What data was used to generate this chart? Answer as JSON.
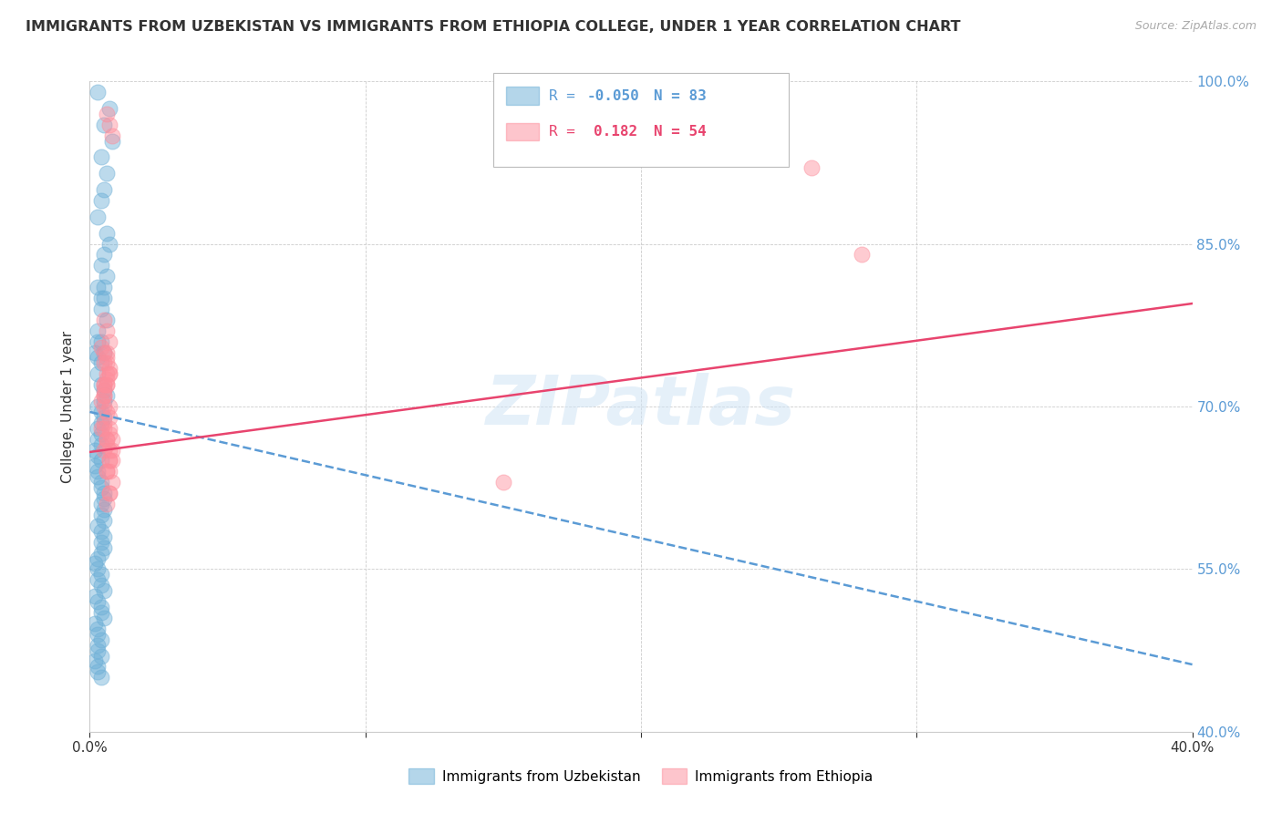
{
  "title": "IMMIGRANTS FROM UZBEKISTAN VS IMMIGRANTS FROM ETHIOPIA COLLEGE, UNDER 1 YEAR CORRELATION CHART",
  "source": "Source: ZipAtlas.com",
  "ylabel": "College, Under 1 year",
  "xlim": [
    0.0,
    0.4
  ],
  "ylim": [
    0.4,
    1.0
  ],
  "xticks": [
    0.0,
    0.1,
    0.2,
    0.3,
    0.4
  ],
  "xtick_labels_show": [
    "0.0%",
    "",
    "",
    "",
    "40.0%"
  ],
  "yticks": [
    0.4,
    0.55,
    0.7,
    0.85,
    1.0
  ],
  "ytick_labels": [
    "40.0%",
    "55.0%",
    "70.0%",
    "85.0%",
    "100.0%"
  ],
  "series1_label": "Immigrants from Uzbekistan",
  "series2_label": "Immigrants from Ethiopia",
  "series1_color": "#6baed6",
  "series2_color": "#fd8d9b",
  "legend_R1_prefix": "R = ",
  "legend_R1_val": "-0.050",
  "legend_N1_prefix": "N = ",
  "legend_N1_val": "83",
  "legend_R2_prefix": "R =  ",
  "legend_R2_val": "0.182",
  "legend_N2_prefix": "N = ",
  "legend_N2_val": "54",
  "watermark": "ZIPatlas",
  "trend1_x0": 0.0,
  "trend1_x1": 0.4,
  "trend1_y0": 0.695,
  "trend1_y1": 0.462,
  "trend2_x0": 0.0,
  "trend2_x1": 0.4,
  "trend2_y0": 0.658,
  "trend2_y1": 0.795,
  "scatter1_x": [
    0.003,
    0.007,
    0.005,
    0.008,
    0.004,
    0.006,
    0.005,
    0.004,
    0.003,
    0.006,
    0.007,
    0.005,
    0.004,
    0.006,
    0.005,
    0.004,
    0.003,
    0.005,
    0.004,
    0.006,
    0.003,
    0.004,
    0.005,
    0.003,
    0.002,
    0.003,
    0.004,
    0.003,
    0.004,
    0.005,
    0.006,
    0.005,
    0.003,
    0.004,
    0.005,
    0.004,
    0.003,
    0.004,
    0.003,
    0.004,
    0.002,
    0.003,
    0.004,
    0.002,
    0.003,
    0.003,
    0.004,
    0.004,
    0.005,
    0.005,
    0.004,
    0.005,
    0.004,
    0.005,
    0.003,
    0.004,
    0.005,
    0.004,
    0.005,
    0.004,
    0.003,
    0.002,
    0.003,
    0.004,
    0.003,
    0.004,
    0.005,
    0.002,
    0.003,
    0.004,
    0.004,
    0.005,
    0.002,
    0.003,
    0.003,
    0.004,
    0.003,
    0.003,
    0.004,
    0.002,
    0.003,
    0.003,
    0.004
  ],
  "scatter1_y": [
    0.99,
    0.975,
    0.96,
    0.945,
    0.93,
    0.915,
    0.9,
    0.89,
    0.875,
    0.86,
    0.85,
    0.84,
    0.83,
    0.82,
    0.81,
    0.8,
    0.81,
    0.8,
    0.79,
    0.78,
    0.77,
    0.76,
    0.75,
    0.76,
    0.75,
    0.745,
    0.74,
    0.73,
    0.72,
    0.715,
    0.71,
    0.705,
    0.7,
    0.695,
    0.69,
    0.685,
    0.68,
    0.675,
    0.67,
    0.665,
    0.66,
    0.655,
    0.65,
    0.645,
    0.64,
    0.635,
    0.63,
    0.625,
    0.62,
    0.615,
    0.61,
    0.605,
    0.6,
    0.595,
    0.59,
    0.585,
    0.58,
    0.575,
    0.57,
    0.565,
    0.56,
    0.555,
    0.55,
    0.545,
    0.54,
    0.535,
    0.53,
    0.525,
    0.52,
    0.515,
    0.51,
    0.505,
    0.5,
    0.495,
    0.49,
    0.485,
    0.48,
    0.475,
    0.47,
    0.465,
    0.46,
    0.455,
    0.45
  ],
  "scatter2_x": [
    0.006,
    0.007,
    0.008,
    0.005,
    0.006,
    0.007,
    0.005,
    0.006,
    0.007,
    0.005,
    0.004,
    0.006,
    0.007,
    0.006,
    0.005,
    0.004,
    0.006,
    0.005,
    0.007,
    0.006,
    0.005,
    0.007,
    0.004,
    0.006,
    0.005,
    0.006,
    0.005,
    0.007,
    0.006,
    0.005,
    0.007,
    0.006,
    0.008,
    0.007,
    0.006,
    0.005,
    0.008,
    0.007,
    0.008,
    0.007,
    0.006,
    0.005,
    0.007,
    0.006,
    0.005,
    0.007,
    0.006,
    0.008,
    0.007,
    0.006,
    0.007,
    0.15,
    0.262,
    0.28
  ],
  "scatter2_y": [
    0.97,
    0.96,
    0.95,
    0.78,
    0.77,
    0.76,
    0.75,
    0.74,
    0.73,
    0.72,
    0.755,
    0.745,
    0.735,
    0.725,
    0.715,
    0.705,
    0.695,
    0.685,
    0.675,
    0.665,
    0.7,
    0.69,
    0.68,
    0.67,
    0.66,
    0.72,
    0.71,
    0.7,
    0.73,
    0.72,
    0.68,
    0.67,
    0.66,
    0.65,
    0.64,
    0.68,
    0.67,
    0.66,
    0.65,
    0.64,
    0.75,
    0.74,
    0.73,
    0.72,
    0.71,
    0.65,
    0.64,
    0.63,
    0.62,
    0.61,
    0.62,
    0.63,
    0.92,
    0.84
  ]
}
